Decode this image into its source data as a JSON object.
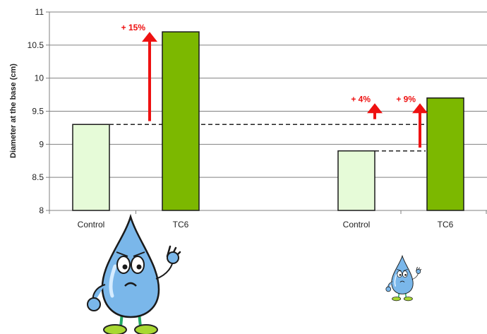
{
  "chart_data": {
    "type": "bar",
    "ylabel": "Diameter at the base (cm)",
    "ylim": [
      8,
      11
    ],
    "yticks": [
      8,
      8.5,
      9,
      9.5,
      10,
      10.5,
      11
    ],
    "ytick_labels": [
      "8",
      "8.5",
      "9",
      "9.5",
      "10",
      "10.5",
      "11"
    ],
    "grid": true,
    "categories": [
      "Control",
      "TC6",
      "Control",
      "TC6"
    ],
    "values": [
      9.3,
      10.7,
      8.9,
      9.7
    ],
    "bar_colors": [
      "#e6fbd8",
      "#7cb800",
      "#e6fbd8",
      "#7cb800"
    ],
    "reference_lines": [
      {
        "y": 9.3,
        "from_bar": 0,
        "to_bar": 3,
        "style": "dashed"
      },
      {
        "y": 8.9,
        "from_bar": 2,
        "to_bar": 3,
        "style": "dashed"
      }
    ],
    "annotations": [
      {
        "text": "+ 15%",
        "bar": 1,
        "from": 9.35,
        "to": 10.7
      },
      {
        "text": "+ 4%",
        "bar": 2,
        "from": 9.38,
        "to": 9.62
      },
      {
        "text": "+ 9%",
        "bar": 3,
        "from": 8.95,
        "to": 9.62
      }
    ],
    "annotation_color": "#ee1111"
  },
  "illustrations": [
    {
      "name": "water-drop-mascot-large"
    },
    {
      "name": "water-drop-mascot-small"
    }
  ]
}
